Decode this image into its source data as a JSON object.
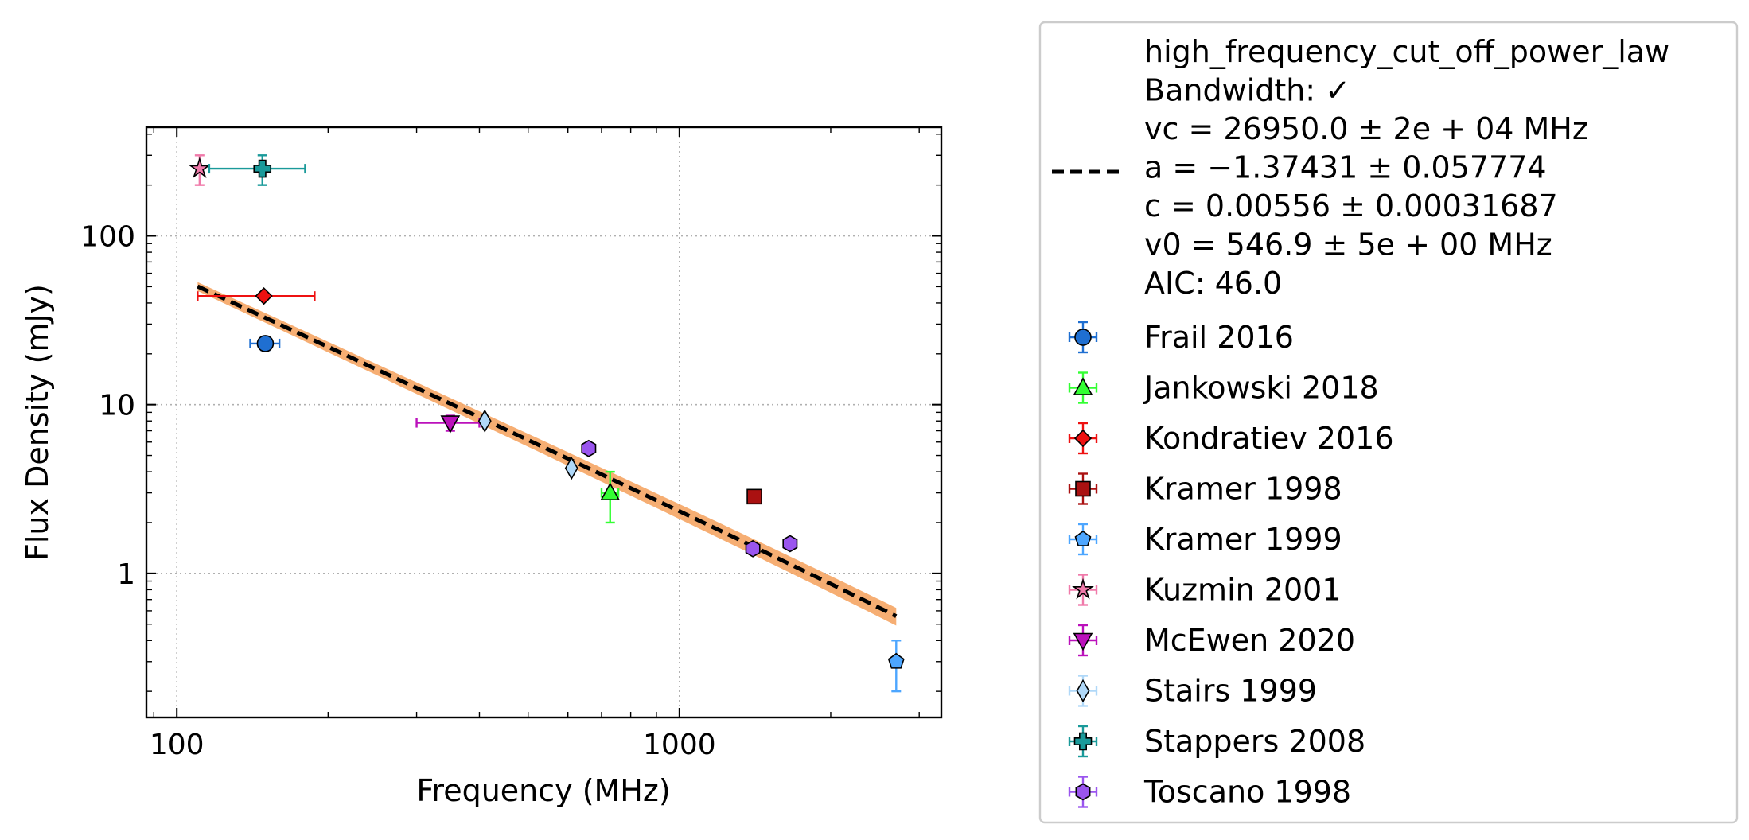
{
  "chart_data": {
    "type": "scatter",
    "xlabel": "Frequency (MHz)",
    "ylabel": "Flux Density (mJy)",
    "xscale": "log",
    "yscale": "log",
    "xlim": [
      87,
      3320
    ],
    "ylim": [
      0.14,
      440
    ],
    "grid": true,
    "legend_position": "outside-right",
    "x_ticks": [
      {
        "value": 100,
        "label": "100"
      },
      {
        "value": 1000,
        "label": "1000"
      }
    ],
    "y_ticks": [
      {
        "value": 1,
        "label": "1"
      },
      {
        "value": 10,
        "label": "10"
      },
      {
        "value": 100,
        "label": "100"
      }
    ],
    "fit": {
      "lines": [
        "high_frequency_cut_off_power_law",
        "Bandwidth: ✓",
        "vc = 26950.0 ± 2e + 04 MHz",
        "a = −1.37431 ± 0.057774",
        "c = 0.00556 ± 0.00031687",
        "v0 = 546.9 ± 5e + 00 MHz",
        "AIC: 46.0"
      ],
      "vc": 26950.0,
      "a": -1.37431,
      "c": 0.00556,
      "v0": 546.9,
      "x_range": [
        110,
        2700
      ],
      "band_color": "#f5a05a",
      "line_color": "#000000"
    },
    "series": [
      {
        "name": "Frail 2016",
        "marker": "circle",
        "color": "#1f6fd1",
        "ecolor": "#1f6fd1",
        "points": [
          {
            "x": 150,
            "y": 23,
            "xlo": 140,
            "xhi": 160,
            "ylo": 21,
            "yhi": 25
          }
        ]
      },
      {
        "name": "Jankowski 2018",
        "marker": "triangle-up",
        "color": "#33ff33",
        "ecolor": "#33ff33",
        "points": [
          {
            "x": 728,
            "y": 3.0,
            "xlo": 700,
            "xhi": 756,
            "ylo": 2.0,
            "yhi": 4.0
          }
        ]
      },
      {
        "name": "Kondratiev 2016",
        "marker": "diamond",
        "color": "#ee1111",
        "ecolor": "#ee1111",
        "points": [
          {
            "x": 149,
            "y": 44,
            "xlo": 110,
            "xhi": 188,
            "ylo": 42,
            "yhi": 46
          }
        ]
      },
      {
        "name": "Kramer 1998",
        "marker": "square",
        "color": "#aa1111",
        "ecolor": "#aa1111",
        "points": [
          {
            "x": 1410,
            "y": 2.85,
            "xlo": 1410,
            "xhi": 1410,
            "ylo": 2.6,
            "yhi": 3.1
          }
        ]
      },
      {
        "name": "Kramer 1999",
        "marker": "pentagon",
        "color": "#4da6ff",
        "ecolor": "#4da6ff",
        "points": [
          {
            "x": 2700,
            "y": 0.3,
            "xlo": 2700,
            "xhi": 2700,
            "ylo": 0.2,
            "yhi": 0.4
          }
        ]
      },
      {
        "name": "Kuzmin 2001",
        "marker": "star",
        "color": "#f07aaa",
        "ecolor": "#f07aaa",
        "points": [
          {
            "x": 111,
            "y": 250,
            "xlo": 111,
            "xhi": 111,
            "ylo": 200,
            "yhi": 300
          }
        ]
      },
      {
        "name": "McEwen 2020",
        "marker": "triangle-down",
        "color": "#bb11bb",
        "ecolor": "#bb11bb",
        "points": [
          {
            "x": 350,
            "y": 7.8,
            "xlo": 300,
            "xhi": 400,
            "ylo": 7.0,
            "yhi": 8.6
          }
        ]
      },
      {
        "name": "Stairs 1999",
        "marker": "thin-diamond",
        "color": "#b0d8f8",
        "ecolor": "#b0d8f8",
        "points": [
          {
            "x": 410,
            "y": 8.0,
            "xlo": 410,
            "xhi": 410,
            "ylo": 7.6,
            "yhi": 8.4
          },
          {
            "x": 610,
            "y": 4.2,
            "xlo": 610,
            "xhi": 610,
            "ylo": 4.0,
            "yhi": 4.4
          }
        ]
      },
      {
        "name": "Stappers 2008",
        "marker": "plus",
        "color": "#1a9a9a",
        "ecolor": "#1a9a9a",
        "points": [
          {
            "x": 148,
            "y": 250,
            "xlo": 116,
            "xhi": 180,
            "ylo": 200,
            "yhi": 300
          }
        ]
      },
      {
        "name": "Toscano 1998",
        "marker": "hexagon",
        "color": "#9a55ee",
        "ecolor": "#9a55ee",
        "points": [
          {
            "x": 660,
            "y": 5.5,
            "xlo": 660,
            "xhi": 660,
            "ylo": 5.3,
            "yhi": 5.7
          },
          {
            "x": 1400,
            "y": 1.4,
            "xlo": 1360,
            "xhi": 1440,
            "ylo": 1.35,
            "yhi": 1.45
          },
          {
            "x": 1660,
            "y": 1.5,
            "xlo": 1620,
            "xhi": 1700,
            "ylo": 1.45,
            "yhi": 1.55
          }
        ]
      }
    ]
  }
}
